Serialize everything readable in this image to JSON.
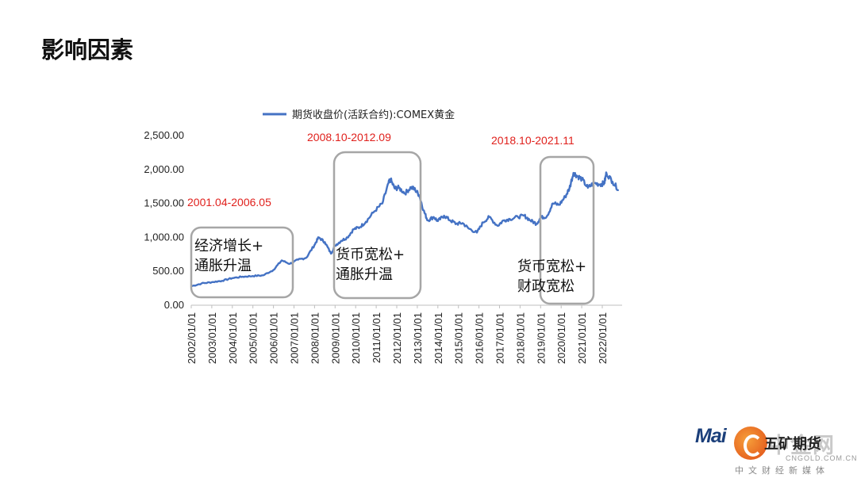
{
  "slide": {
    "title": "影响因素"
  },
  "chart_data": {
    "type": "line",
    "legend": "期货收盘价(活跃合约):COMEX黄金",
    "series_color": "#4472c4",
    "y_ticks": [
      "2,500.00",
      "2,000.00",
      "1,500.00",
      "1,000.00",
      "500.00",
      "0.00"
    ],
    "ylim": [
      0,
      2500
    ],
    "x_ticks": [
      "2002/01/01",
      "2003/01/01",
      "2004/01/01",
      "2005/01/01",
      "2006/01/01",
      "2007/01/01",
      "2008/01/01",
      "2009/01/01",
      "2010/01/01",
      "2011/01/01",
      "2012/01/01",
      "2013/01/01",
      "2014/01/01",
      "2015/01/01",
      "2016/01/01",
      "2017/01/01",
      "2018/01/01",
      "2019/01/01",
      "2020/01/01",
      "2021/01/01",
      "2022/01/01"
    ],
    "x": [
      2002.0,
      2002.5,
      2003.0,
      2003.5,
      2004.0,
      2004.5,
      2005.0,
      2005.5,
      2006.0,
      2006.4,
      2006.8,
      2007.2,
      2007.6,
      2008.0,
      2008.2,
      2008.5,
      2008.8,
      2009.0,
      2009.3,
      2009.6,
      2009.9,
      2010.2,
      2010.5,
      2010.9,
      2011.3,
      2011.6,
      2011.7,
      2011.9,
      2012.1,
      2012.4,
      2012.7,
      2012.9,
      2013.1,
      2013.3,
      2013.5,
      2013.8,
      2014.0,
      2014.3,
      2014.6,
      2014.9,
      2015.2,
      2015.5,
      2015.9,
      2016.2,
      2016.5,
      2016.9,
      2017.2,
      2017.5,
      2017.9,
      2018.2,
      2018.5,
      2018.8,
      2019.0,
      2019.3,
      2019.6,
      2019.9,
      2020.2,
      2020.4,
      2020.6,
      2020.8,
      2021.0,
      2021.3,
      2021.6,
      2021.9,
      2022.1,
      2022.2,
      2022.5,
      2022.8
    ],
    "y": [
      280,
      320,
      340,
      360,
      400,
      420,
      430,
      440,
      520,
      660,
      610,
      670,
      700,
      890,
      1000,
      930,
      760,
      880,
      950,
      1000,
      1120,
      1150,
      1230,
      1380,
      1500,
      1800,
      1850,
      1720,
      1730,
      1650,
      1740,
      1700,
      1620,
      1400,
      1250,
      1300,
      1240,
      1320,
      1250,
      1200,
      1210,
      1130,
      1070,
      1220,
      1300,
      1170,
      1250,
      1270,
      1300,
      1320,
      1250,
      1200,
      1290,
      1310,
      1500,
      1480,
      1600,
      1720,
      1950,
      1900,
      1860,
      1730,
      1800,
      1780,
      1800,
      1950,
      1820,
      1700
    ],
    "periods": [
      {
        "label": "2001.04-2006.05",
        "note_lines": [
          "经济增长+",
          "通胀升温"
        ]
      },
      {
        "label": "2008.10-2012.09",
        "note_lines": [
          "货币宽松+",
          "通胀升温"
        ]
      },
      {
        "label": "2018.10-2021.11",
        "note_lines": [
          "货币宽松+",
          "财政宽松"
        ]
      }
    ]
  },
  "watermark": {
    "mai": "Mai",
    "brand_cn": "中金网",
    "brand_cn_dark": "五矿期货",
    "url": "CNGOLD.COM.CN",
    "subtitle": "中文财经新媒体"
  }
}
